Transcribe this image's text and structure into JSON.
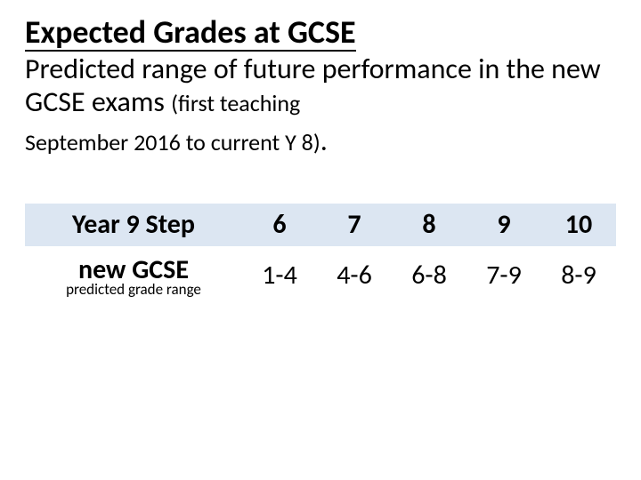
{
  "title": "Expected Grades at GCSE",
  "subtitle_main": "Predicted range of future performance in the new GCSE exams ",
  "subtitle_paren_inline": "(first teaching",
  "subtitle_line2": "September 2016 to current Y 8)",
  "subtitle_period": ".",
  "table": {
    "type": "table",
    "row1_label": "Year 9 Step",
    "row2_label_big": "new GCSE",
    "row2_label_small": "predicted grade range",
    "steps": [
      "6",
      "7",
      "8",
      "9",
      "10"
    ],
    "grades": [
      "1-4",
      "4-6",
      "6-8",
      "7-9",
      "8-9"
    ],
    "colors": {
      "header_row_bg": "#dce6f2",
      "body_row_bg": "#ffffff",
      "text": "#000000"
    },
    "fontsizes": {
      "title": 36,
      "subtitle": 32,
      "subtitle_paren": 26,
      "cell": 30,
      "label_small": 17
    }
  }
}
